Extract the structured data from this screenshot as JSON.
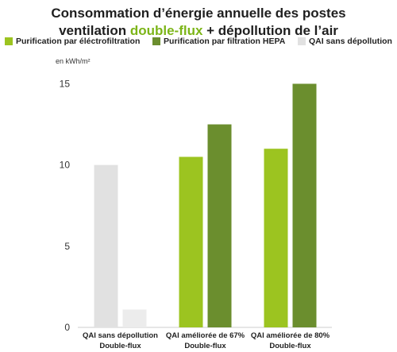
{
  "title": {
    "line1": "Consommation d’énergie annuelle des postes",
    "line2_pre": "ventilation ",
    "line2_highlight": "double-flux",
    "line2_post": " + dépollution de l’air"
  },
  "colors": {
    "highlight": "#7cb518",
    "series": [
      "#9cc420",
      "#6b8e2e",
      "#e1e1e1"
    ],
    "axis": "#cccccc",
    "text": "#333333"
  },
  "chart_data": {
    "type": "bar",
    "unit_label": "en kWh/m²",
    "categories": [
      [
        "QAI sans dépollution",
        "Double-flux"
      ],
      [
        "QAI améliorée de 67%",
        "Double-flux"
      ],
      [
        "QAI améliorée de 80%",
        "Double-flux"
      ]
    ],
    "series": [
      {
        "name": "Purification par éléctrofiltration",
        "color": "#9cc420",
        "values": [
          null,
          10.5,
          11
        ]
      },
      {
        "name": "Purification par filtration HEPA",
        "color": "#6b8e2e",
        "values": [
          null,
          12.5,
          15
        ]
      },
      {
        "name": "QAI sans dépollution",
        "color": "#e1e1e1",
        "values": [
          10,
          null,
          null
        ]
      }
    ],
    "extra_bars": [
      {
        "category_index": 0,
        "value": 1.1,
        "color": "#ececec"
      }
    ],
    "yticks": [
      0,
      5,
      10,
      15
    ],
    "ylim": [
      0,
      16
    ],
    "grid": false,
    "legend_position": "top"
  }
}
